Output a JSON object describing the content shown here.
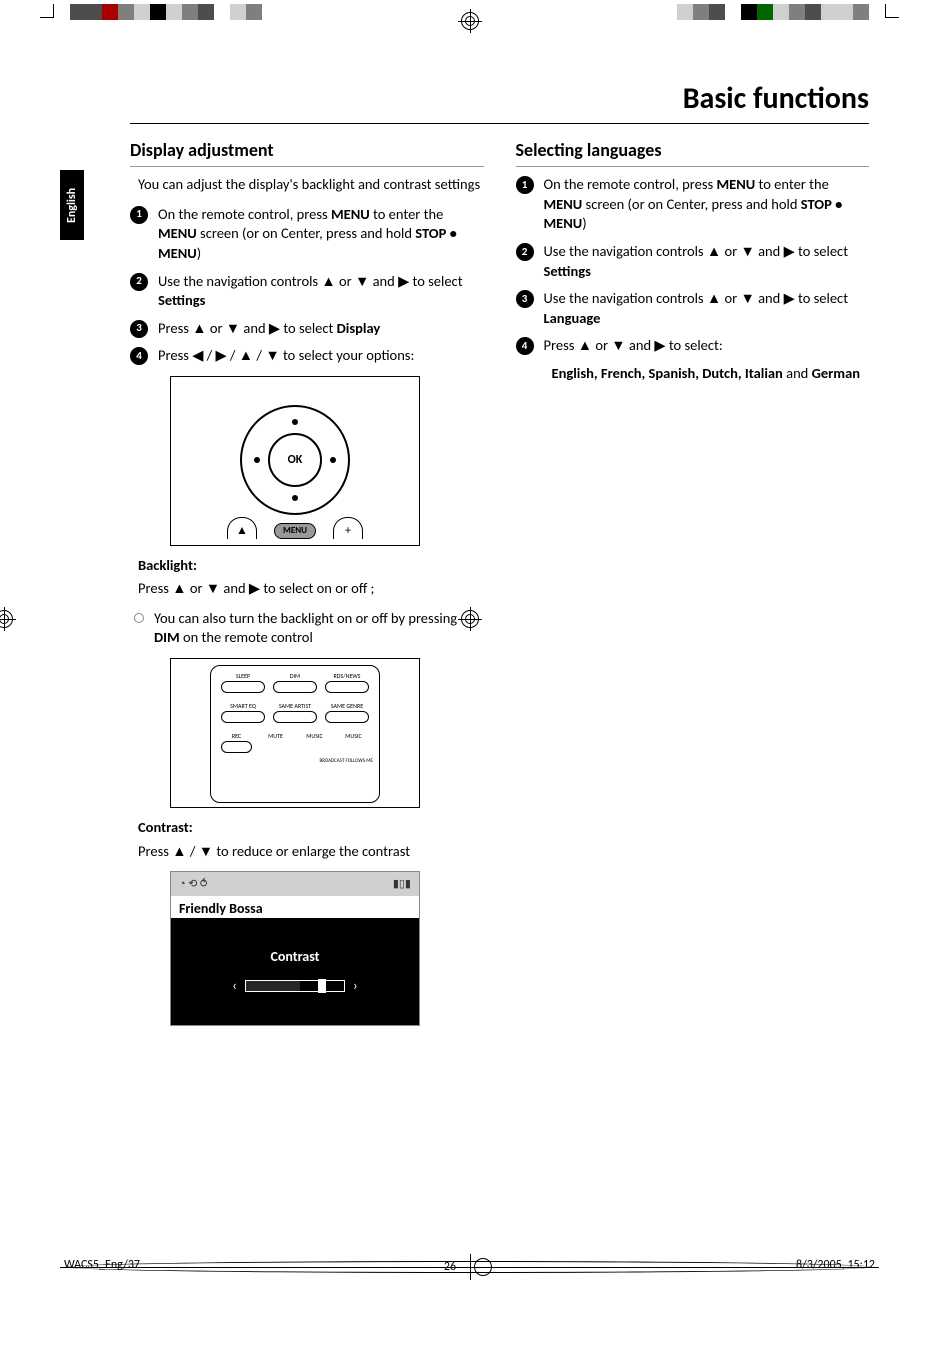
{
  "print": {
    "colorbar_left": [
      "#4d4d4d",
      "#4d4d4d",
      "#aa0000",
      "#7f7f7f",
      "#cfcfcf",
      "#000000",
      "#cfcfcf",
      "#7f7f7f",
      "#4d4d4d",
      "#ffffff",
      "#cfcfcf",
      "#7f7f7f"
    ],
    "colorbar_right": [
      "#cfcfcf",
      "#7f7f7f",
      "#4d4d4d",
      "#ffffff",
      "#000000",
      "#006600",
      "#cfcfcf",
      "#7f7f7f",
      "#4d4d4d",
      "#cfcfcf",
      "#cfcfcf",
      "#7f7f7f"
    ]
  },
  "chapter_title": "Basic functions",
  "language_tab": "English",
  "left": {
    "heading": "Display adjustment",
    "intro": "You can adjust the display's  backlight and contrast settings",
    "steps": [
      {
        "n": "1",
        "html": "On the remote control, press <b>MENU</b> to enter the <b>MENU</b> screen (or on Center, press and hold <b>STOP • MENU</b>)"
      },
      {
        "n": "2",
        "html": "Use the navigation controls  ▲  or  ▼  and ▶  to select <b>Settings</b>"
      },
      {
        "n": "3",
        "html": "Press  ▲  or ▼  and ▶ to  select <b>Display</b>"
      },
      {
        "n": "4",
        "html": "Press  ◀ / ▶  /  ▲  /  ▼  to  select  your options:"
      }
    ],
    "fig1": {
      "ok": "OK",
      "menu": "MENU",
      "left_btn": "▲",
      "right_btn": "+"
    },
    "backlight_head": "Backlight:",
    "backlight_line1": "Press ▲  or  ▼  and ▶ to select on or off ;",
    "backlight_line2_html": "You can also turn the backlight on or off by pressing <b>DIM</b> on the remote control",
    "fig2_labels": {
      "row1": [
        "SLEEP",
        "DIM",
        "RDS/NEWS"
      ],
      "row2": [
        "SMART EQ",
        "SAME ARTIST",
        "SAME GENRE"
      ],
      "row3": [
        "REC",
        "MUTE",
        "MUSIC",
        "MUSIC"
      ],
      "row4_right": "BROADCAST   FOLLOWS ME"
    },
    "contrast_head": "Contrast",
    "contrast_text": "Press  ▲  /  ▼  to reduce or enlarge the contrast",
    "fig3": {
      "status_icons": "◔ ⟲ ⥀",
      "signal_icon": "▮▯▮",
      "title": "Friendly Bossa",
      "label": "Contrast",
      "left_arrow": "‹",
      "right_arrow": "›"
    }
  },
  "right": {
    "heading": "Selecting languages",
    "steps": [
      {
        "n": "1",
        "html": "On the remote control, press <b>MENU</b> to enter the <b>MENU</b> screen (or on Center, press and hold <b>STOP • MENU</b>)"
      },
      {
        "n": "2",
        "html": "Use the navigation controls  ▲  or  ▼  and ▶  to select <b>Settings</b>"
      },
      {
        "n": "3",
        "html": "Use the navigation controls  ▲  or  ▼  and ▶  to select <b>Language</b>"
      },
      {
        "n": "4",
        "html": "Press  ▲  or ▼  and ▶ to  select:"
      }
    ],
    "result_html": "<b>English, French, Spanish, Dutch, Italian</b> and <b>German</b>"
  },
  "footer": {
    "left": "WACS5_Eng/37",
    "page": "26",
    "right": "8/3/2005, 15:12"
  }
}
